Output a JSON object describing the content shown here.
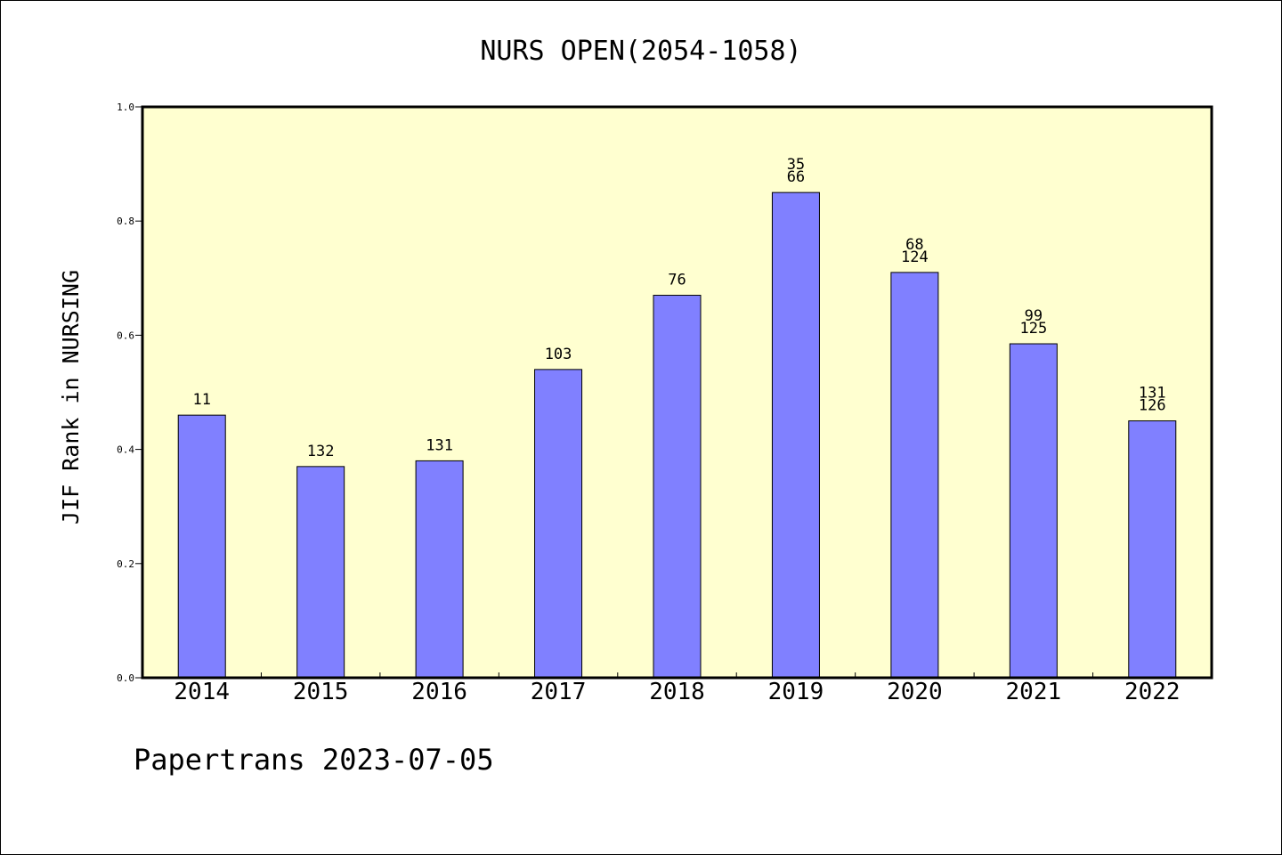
{
  "chart_data": {
    "type": "bar",
    "title": "NURS OPEN(2054-1058)",
    "xlabel": "",
    "ylabel": "JIF Rank in NURSING",
    "ylim": [
      0,
      1.0
    ],
    "yticks": [
      "0.0",
      "0.2",
      "0.4",
      "0.6",
      "0.8",
      "1.0"
    ],
    "grid": false,
    "categories": [
      "2014",
      "2015",
      "2016",
      "2017",
      "2018",
      "2019",
      "2020",
      "2021",
      "2022"
    ],
    "values": [
      0.46,
      0.37,
      0.38,
      0.54,
      0.67,
      0.85,
      0.71,
      0.585,
      0.45
    ],
    "rank_labels": [
      [
        "11"
      ],
      [
        "132"
      ],
      [
        "131"
      ],
      [
        "103"
      ],
      [
        "76"
      ],
      [
        "35",
        "66"
      ],
      [
        "68",
        "124"
      ],
      [
        "99",
        "125"
      ],
      [
        "131",
        "126"
      ]
    ],
    "colors": {
      "bar_fill": "#8080ff",
      "plot_background": "#ffffd0",
      "axis": "#000000"
    }
  },
  "footer": {
    "text": "Papertrans 2023-07-05"
  }
}
